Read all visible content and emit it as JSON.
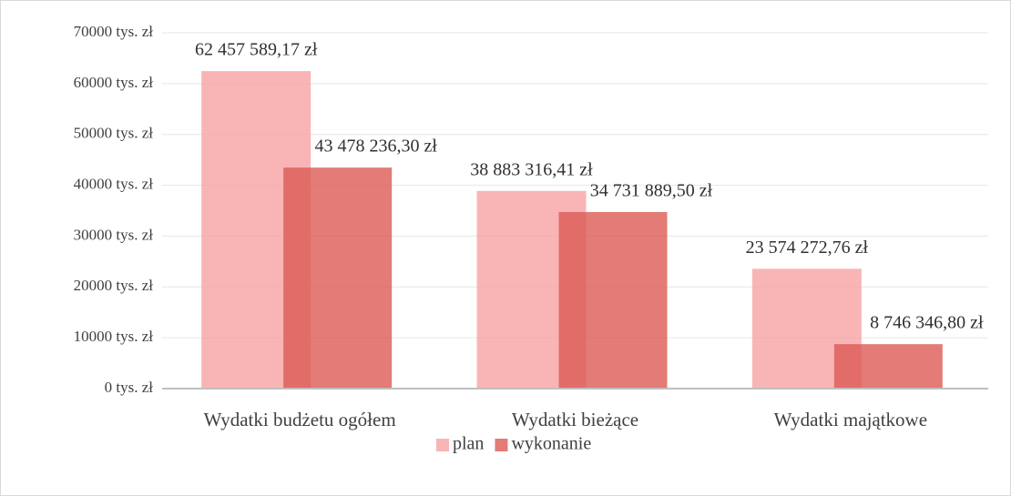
{
  "chart_data": {
    "type": "bar",
    "categories": [
      "Wydatki budżetu ogółem",
      "Wydatki bieżące",
      "Wydatki majątkowe"
    ],
    "series": [
      {
        "name": "plan",
        "color": "#f7a3a3",
        "values": [
          62457.58917,
          38883.31641,
          23574.27276
        ],
        "value_labels": [
          "62 457 589,17 zł",
          "38 883 316,41 zł",
          "23 574 272,76 zł"
        ]
      },
      {
        "name": "wykonanie",
        "color": "#dc5a55",
        "values": [
          43478.2363,
          34731.8895,
          8746.3468
        ],
        "value_labels": [
          "43 478 236,30 zł",
          "34 731 889,50 zł",
          "8 746 346,80 zł"
        ]
      }
    ],
    "ylim": [
      0,
      70000
    ],
    "yticks": [
      {
        "value": 0,
        "label": "0 tys. zł"
      },
      {
        "value": 10000,
        "label": "10000 tys. zł"
      },
      {
        "value": 20000,
        "label": "20000 tys. zł"
      },
      {
        "value": 30000,
        "label": "30000 tys. zł"
      },
      {
        "value": 40000,
        "label": "40000 tys. zł"
      },
      {
        "value": 50000,
        "label": "50000 tys. zł"
      },
      {
        "value": 60000,
        "label": "60000 tys. zł"
      },
      {
        "value": 70000,
        "label": "70000 tys. zł"
      }
    ],
    "grid": true,
    "legend": "bottom"
  }
}
